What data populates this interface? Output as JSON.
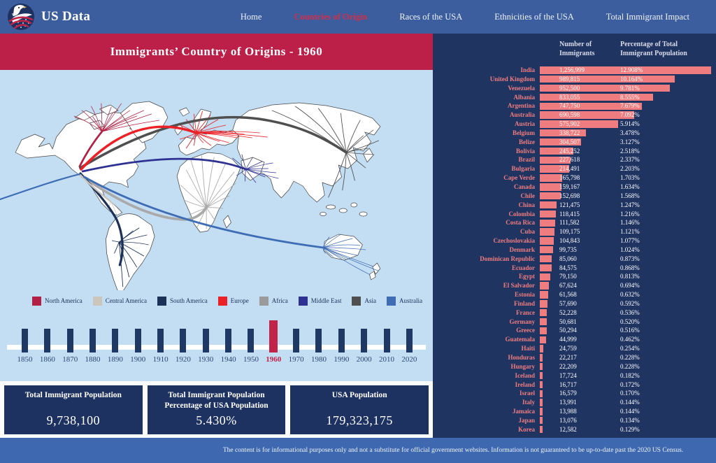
{
  "brand": {
    "name": "US Data"
  },
  "nav": {
    "items": [
      {
        "label": "Home",
        "active": false
      },
      {
        "label": "Countries of Origin",
        "active": true
      },
      {
        "label": "Races of the USA",
        "active": false
      },
      {
        "label": "Ethnicities of the USA",
        "active": false
      },
      {
        "label": "Total Immigrant Impact",
        "active": false
      }
    ]
  },
  "page": {
    "title": "Immigrants’ Country of Origins - 1960"
  },
  "legend": {
    "items": [
      {
        "label": "North America",
        "color": "#b32045"
      },
      {
        "label": "Central America",
        "color": "#cbc5bc"
      },
      {
        "label": "South America",
        "color": "#1b3158"
      },
      {
        "label": "Europe",
        "color": "#ec2027"
      },
      {
        "label": "Africa",
        "color": "#9b9b9b"
      },
      {
        "label": "Middle East",
        "color": "#2e3192"
      },
      {
        "label": "Asia",
        "color": "#4f4f4f"
      },
      {
        "label": "Australia",
        "color": "#3e6db5"
      }
    ]
  },
  "timeline": {
    "years": [
      1850,
      1860,
      1870,
      1880,
      1890,
      1900,
      1910,
      1920,
      1930,
      1940,
      1950,
      1960,
      1970,
      1980,
      1990,
      2000,
      2010,
      2020
    ],
    "selected_year": 1960
  },
  "stats": {
    "cards": [
      {
        "title": "Total Immigrant Population",
        "value": "9,738,100"
      },
      {
        "title": "Total Immigrant Population Percentage of USA Population",
        "value": "5.430%"
      },
      {
        "title": "USA Population",
        "value": "179,323,175"
      }
    ]
  },
  "sidebar": {
    "col1_header": "Number of Immigrants",
    "col2_header": "Percentage of Total Immigrant Population"
  },
  "chart_data": {
    "type": "bar",
    "orientation": "horizontal",
    "categories": [
      "India",
      "United Kingdom",
      "Venezuela",
      "Albania",
      "Argentina",
      "Australia",
      "Austria",
      "Belgium",
      "Belize",
      "Bolivia",
      "Brazil",
      "Bulgaria",
      "Cape Verde",
      "Canada",
      "Chile",
      "China",
      "Colombia",
      "Costa Rica",
      "Cuba",
      "Czechoslovakia",
      "Denmark",
      "Dominican Republic",
      "Ecuador",
      "Egypt",
      "El Salvador",
      "Estonia",
      "Finland",
      "France",
      "Germany",
      "Greece",
      "Guatemala",
      "Haiti",
      "Honduras",
      "Hungary",
      "Iceland",
      "Ireland",
      "Israel",
      "Italy",
      "Jamaica",
      "Japan",
      "Korea"
    ],
    "series": [
      {
        "name": "Number of Immigrants",
        "values": [
          1256999,
          989815,
          952500,
          833055,
          747750,
          690598,
          575902,
          338722,
          304507,
          245252,
          227618,
          214491,
          165798,
          159167,
          152698,
          121475,
          118415,
          111582,
          109175,
          104843,
          99735,
          85060,
          84575,
          79150,
          67624,
          61568,
          57690,
          52228,
          50681,
          50294,
          44999,
          24759,
          22217,
          22209,
          17724,
          16717,
          16579,
          13991,
          13988,
          13076,
          12582
        ]
      },
      {
        "name": "Percentage of Total Immigrant Population",
        "values": [
          12.908,
          10.164,
          9.781,
          8.555,
          7.679,
          7.092,
          5.914,
          3.478,
          3.127,
          2.518,
          2.337,
          2.203,
          1.703,
          1.634,
          1.568,
          1.247,
          1.216,
          1.146,
          1.121,
          1.077,
          1.024,
          0.873,
          0.868,
          0.813,
          0.694,
          0.632,
          0.592,
          0.536,
          0.52,
          0.516,
          0.462,
          0.254,
          0.228,
          0.228,
          0.182,
          0.172,
          0.17,
          0.144,
          0.144,
          0.134,
          0.129
        ]
      }
    ],
    "bar_color": "#ef7d7f",
    "legend_position": "top"
  },
  "footer": {
    "disclaimer": "The content is for informational purposes only and not a substitute for official government websites. Information is not guaranteed to be up-to-date past the 2020 US Census."
  },
  "colors": {
    "nav_blue": "#3c5e9e",
    "banner_crimson": "#bc2049",
    "active_nav": "#d22e4a",
    "map_light_blue": "#c3ddf2",
    "sidebar_navy": "#203462",
    "card_navy": "#1e3262",
    "footer_blue": "#3e68b0",
    "bar_salmon": "#ef7d7f",
    "tick_navy": "#1f3864",
    "selected_tick": "#c22348"
  }
}
